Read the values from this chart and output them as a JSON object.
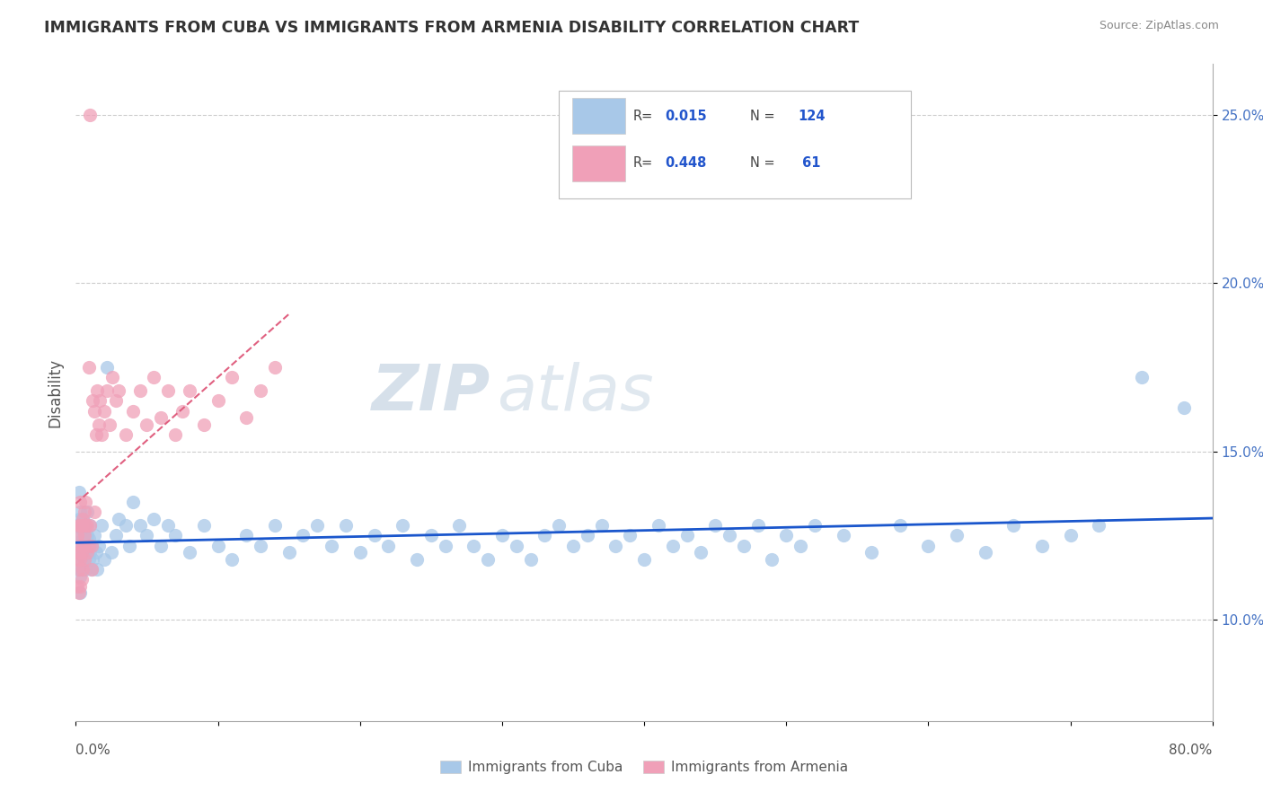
{
  "title": "IMMIGRANTS FROM CUBA VS IMMIGRANTS FROM ARMENIA DISABILITY CORRELATION CHART",
  "source": "Source: ZipAtlas.com",
  "ylabel": "Disability",
  "xlim": [
    0.0,
    0.8
  ],
  "ylim": [
    0.07,
    0.265
  ],
  "watermark_zip": "ZIP",
  "watermark_atlas": "atlas",
  "color_cuba": "#A8C8E8",
  "color_armenia": "#F0A0B8",
  "trendline_cuba_color": "#1A56CC",
  "trendline_armenia_color": "#E06080",
  "background_color": "#FFFFFF",
  "title_fontsize": 12.5,
  "cuba_x": [
    0.001,
    0.001,
    0.002,
    0.002,
    0.002,
    0.002,
    0.003,
    0.003,
    0.003,
    0.003,
    0.003,
    0.004,
    0.004,
    0.004,
    0.005,
    0.005,
    0.005,
    0.006,
    0.006,
    0.006,
    0.007,
    0.007,
    0.008,
    0.008,
    0.008,
    0.009,
    0.009,
    0.01,
    0.01,
    0.011,
    0.011,
    0.012,
    0.013,
    0.014,
    0.015,
    0.016,
    0.018,
    0.02,
    0.022,
    0.025,
    0.028,
    0.03,
    0.035,
    0.038,
    0.04,
    0.045,
    0.05,
    0.055,
    0.06,
    0.065,
    0.07,
    0.08,
    0.09,
    0.1,
    0.11,
    0.12,
    0.13,
    0.14,
    0.15,
    0.16,
    0.17,
    0.18,
    0.19,
    0.2,
    0.21,
    0.22,
    0.23,
    0.24,
    0.25,
    0.26,
    0.27,
    0.28,
    0.29,
    0.3,
    0.31,
    0.32,
    0.33,
    0.34,
    0.35,
    0.36,
    0.37,
    0.38,
    0.39,
    0.4,
    0.41,
    0.42,
    0.43,
    0.44,
    0.45,
    0.46,
    0.47,
    0.48,
    0.49,
    0.5,
    0.51,
    0.52,
    0.54,
    0.56,
    0.58,
    0.6,
    0.62,
    0.64,
    0.66,
    0.68,
    0.7,
    0.72,
    0.75,
    0.78
  ],
  "cuba_y": [
    0.12,
    0.128,
    0.115,
    0.122,
    0.13,
    0.138,
    0.113,
    0.118,
    0.125,
    0.132,
    0.108,
    0.12,
    0.127,
    0.115,
    0.119,
    0.124,
    0.13,
    0.118,
    0.126,
    0.122,
    0.115,
    0.128,
    0.12,
    0.125,
    0.132,
    0.118,
    0.124,
    0.12,
    0.128,
    0.115,
    0.122,
    0.118,
    0.125,
    0.12,
    0.115,
    0.122,
    0.128,
    0.118,
    0.175,
    0.12,
    0.125,
    0.13,
    0.128,
    0.122,
    0.135,
    0.128,
    0.125,
    0.13,
    0.122,
    0.128,
    0.125,
    0.12,
    0.128,
    0.122,
    0.118,
    0.125,
    0.122,
    0.128,
    0.12,
    0.125,
    0.128,
    0.122,
    0.128,
    0.12,
    0.125,
    0.122,
    0.128,
    0.118,
    0.125,
    0.122,
    0.128,
    0.122,
    0.118,
    0.125,
    0.122,
    0.118,
    0.125,
    0.128,
    0.122,
    0.125,
    0.128,
    0.122,
    0.125,
    0.118,
    0.128,
    0.122,
    0.125,
    0.12,
    0.128,
    0.125,
    0.122,
    0.128,
    0.118,
    0.125,
    0.122,
    0.128,
    0.125,
    0.12,
    0.128,
    0.122,
    0.125,
    0.12,
    0.128,
    0.122,
    0.125,
    0.128,
    0.172,
    0.163
  ],
  "armenia_x": [
    0.001,
    0.001,
    0.001,
    0.002,
    0.002,
    0.002,
    0.002,
    0.003,
    0.003,
    0.003,
    0.003,
    0.003,
    0.004,
    0.004,
    0.004,
    0.005,
    0.005,
    0.005,
    0.006,
    0.006,
    0.006,
    0.007,
    0.007,
    0.008,
    0.008,
    0.009,
    0.009,
    0.01,
    0.01,
    0.011,
    0.011,
    0.012,
    0.013,
    0.013,
    0.014,
    0.015,
    0.016,
    0.017,
    0.018,
    0.02,
    0.022,
    0.024,
    0.026,
    0.028,
    0.03,
    0.035,
    0.04,
    0.045,
    0.05,
    0.055,
    0.06,
    0.065,
    0.07,
    0.075,
    0.08,
    0.09,
    0.1,
    0.11,
    0.12,
    0.13,
    0.14
  ],
  "armenia_y": [
    0.11,
    0.118,
    0.125,
    0.108,
    0.115,
    0.12,
    0.128,
    0.11,
    0.118,
    0.122,
    0.128,
    0.135,
    0.112,
    0.12,
    0.128,
    0.115,
    0.122,
    0.13,
    0.125,
    0.132,
    0.118,
    0.128,
    0.135,
    0.12,
    0.128,
    0.122,
    0.175,
    0.25,
    0.128,
    0.115,
    0.122,
    0.165,
    0.132,
    0.162,
    0.155,
    0.168,
    0.158,
    0.165,
    0.155,
    0.162,
    0.168,
    0.158,
    0.172,
    0.165,
    0.168,
    0.155,
    0.162,
    0.168,
    0.158,
    0.172,
    0.16,
    0.168,
    0.155,
    0.162,
    0.168,
    0.158,
    0.165,
    0.172,
    0.16,
    0.168,
    0.175
  ],
  "ytick_positions": [
    0.1,
    0.15,
    0.2,
    0.25
  ],
  "ytick_labels": [
    "10.0%",
    "15.0%",
    "20.0%",
    "25.0%"
  ]
}
